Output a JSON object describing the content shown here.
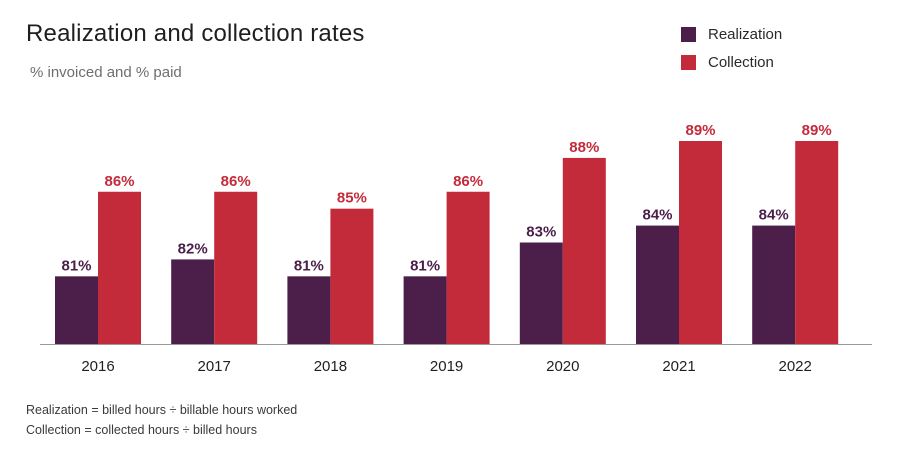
{
  "chart_data": {
    "type": "bar",
    "title": "Realization and collection rates",
    "subtitle": "% invoiced and % paid",
    "categories": [
      "2016",
      "2017",
      "2018",
      "2019",
      "2020",
      "2021",
      "2022"
    ],
    "series": [
      {
        "name": "Realization",
        "color": "#4b1f4a",
        "values": [
          81,
          82,
          81,
          81,
          83,
          84,
          84
        ],
        "labels": [
          "81%",
          "82%",
          "81%",
          "81%",
          "83%",
          "84%",
          "84%"
        ]
      },
      {
        "name": "Collection",
        "color": "#c42b3a",
        "values": [
          86,
          86,
          85,
          86,
          88,
          89,
          89
        ],
        "labels": [
          "86%",
          "86%",
          "85%",
          "86%",
          "88%",
          "89%",
          "89%"
        ]
      }
    ],
    "ylim": [
      77,
      90
    ],
    "xlabel": "",
    "ylabel": "",
    "legend_position": "top-right",
    "grid": false
  },
  "footnotes": [
    "Realization = billed hours ÷ billable hours worked",
    "Collection = collected hours ÷ billed hours"
  ]
}
